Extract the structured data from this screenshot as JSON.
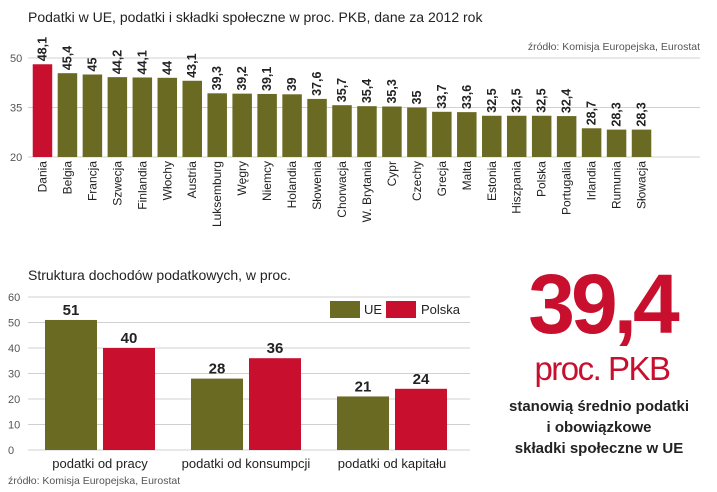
{
  "colors": {
    "eu": "#6b6a23",
    "poland": "#c8102e",
    "grid": "#d0d0d0",
    "axis": "#999999",
    "text": "#222222",
    "muted": "#555555"
  },
  "chart_data": [
    {
      "type": "bar",
      "title": "Podatki w UE, podatki i składki społeczne w proc. PKB, dane za 2012 rok",
      "source": "źródło: Komisja Europejska, Eurostat",
      "categories": [
        "Dania",
        "Belgia",
        "Francja",
        "Szwecja",
        "Finlandia",
        "Włochy",
        "Austria",
        "Luksemburg",
        "Węgry",
        "Niemcy",
        "Holandia",
        "Słowenia",
        "Chorwacja",
        "W. Brytania",
        "Cypr",
        "Czechy",
        "Grecja",
        "Malta",
        "Estonia",
        "Hiszpania",
        "Polska",
        "Portugalia",
        "Irlandia",
        "Rumunia",
        "Słowacja"
      ],
      "values": [
        48.1,
        45.4,
        45,
        44.2,
        44.1,
        44,
        43.1,
        39.3,
        39.2,
        39.1,
        39,
        37.6,
        35.7,
        35.4,
        35.3,
        35,
        33.7,
        33.6,
        32.5,
        32.5,
        32.5,
        32.4,
        28.7,
        28.3,
        28.3
      ],
      "value_labels": [
        "48,1",
        "45,4",
        "45",
        "44,2",
        "44,1",
        "44",
        "43,1",
        "39,3",
        "39,2",
        "39,1",
        "39",
        "37,6",
        "35,7",
        "35,4",
        "35,3",
        "35",
        "33,7",
        "33,6",
        "32,5",
        "32,5",
        "32,5",
        "32,4",
        "28,7",
        "28,3",
        "28,3"
      ],
      "highlight_index": 0,
      "yticks": [
        20,
        35,
        50
      ],
      "ytick_labels": [
        "20",
        "35",
        "50"
      ],
      "ylim": [
        20,
        50
      ],
      "xlabel": "",
      "ylabel": ""
    },
    {
      "type": "bar",
      "title": "Struktura dochodów podatkowych, w proc.",
      "source": "źródło: Komisja Europejska, Eurostat",
      "categories": [
        "podatki od pracy",
        "podatki od konsumpcji",
        "podatki od kapitału"
      ],
      "series": [
        {
          "name": "UE",
          "values": [
            51,
            28,
            21
          ],
          "value_labels": [
            "51",
            "28",
            "21"
          ]
        },
        {
          "name": "Polska",
          "values": [
            40,
            36,
            24
          ],
          "value_labels": [
            "40",
            "36",
            "24"
          ]
        }
      ],
      "yticks": [
        0,
        10,
        20,
        30,
        40,
        50,
        60
      ],
      "ytick_labels": [
        "0",
        "10",
        "20",
        "30",
        "40",
        "50",
        "60"
      ],
      "ylim": [
        0,
        60
      ],
      "legend": "top-right",
      "xlabel": "",
      "ylabel": ""
    }
  ],
  "highlight": {
    "value": "39,4",
    "unit": "proc. PKB",
    "description_lines": [
      "stanowią średnio podatki",
      "i obowiązkowe",
      "składki społeczne w UE"
    ]
  }
}
